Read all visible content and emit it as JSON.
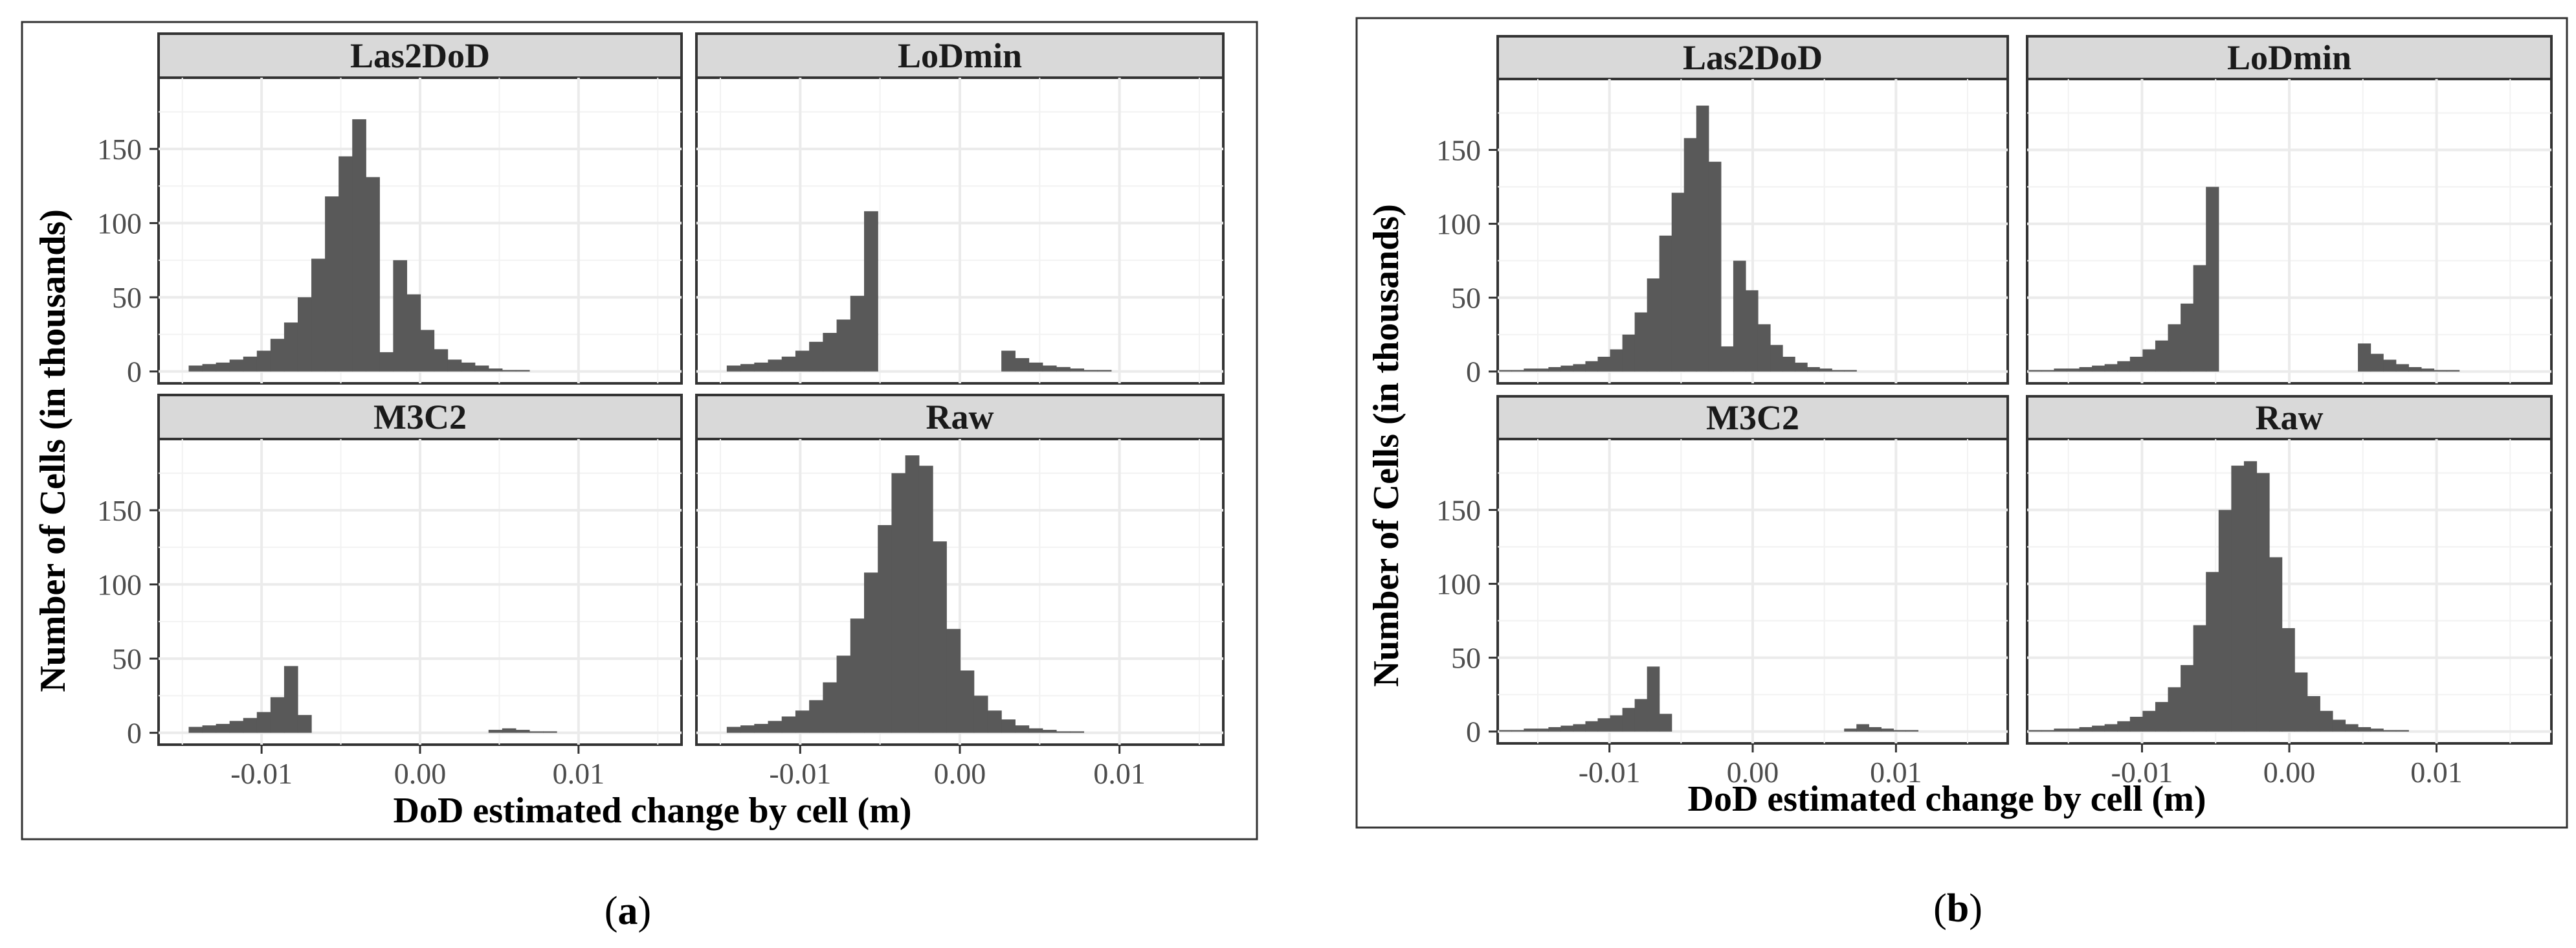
{
  "chart_data": [
    {
      "type": "bar",
      "subplot": "(a)",
      "caption_letter": "a",
      "ylabel": "Number of Cells (in thousands)",
      "xlabel": "DoD estimated change by cell (m)",
      "xlim": [
        -0.0165,
        0.0165
      ],
      "ylim": [
        -8,
        198
      ],
      "x_ticks": [
        -0.01,
        0.0,
        0.01
      ],
      "x_tick_labels": [
        "-0.01",
        "0.00",
        "0.01"
      ],
      "y_ticks": [
        0,
        50,
        100,
        150
      ],
      "y_tick_labels": [
        "0",
        "50",
        "100",
        "150"
      ],
      "bin_width": 0.00086,
      "panels": [
        {
          "title": "Las2DoD",
          "bins_start": -0.0146,
          "values": [
            4,
            5,
            6,
            8,
            10,
            14,
            22,
            33,
            50,
            76,
            118,
            145,
            170,
            131,
            13,
            75,
            52,
            28,
            15,
            8,
            6,
            4,
            2,
            1,
            1,
            0,
            0,
            0,
            0,
            0
          ]
        },
        {
          "title": "LoDmin",
          "bins_start": -0.0146,
          "values": [
            4,
            5,
            6,
            8,
            10,
            14,
            20,
            26,
            35,
            51,
            108,
            0,
            0,
            0,
            0,
            0,
            0,
            0,
            0,
            0,
            14,
            9,
            6,
            4,
            3,
            2,
            1,
            1,
            0,
            0
          ]
        },
        {
          "title": "M3C2",
          "bins_start": -0.0146,
          "values": [
            4,
            5,
            6,
            8,
            10,
            14,
            24,
            45,
            12,
            0,
            0,
            0,
            0,
            0,
            0,
            0,
            0,
            0,
            0,
            0,
            0,
            0,
            2,
            3,
            2,
            1,
            1,
            0,
            0,
            0
          ]
        },
        {
          "title": "Raw",
          "bins_start": -0.0146,
          "values": [
            4,
            5,
            6,
            8,
            11,
            15,
            22,
            34,
            52,
            77,
            108,
            140,
            175,
            187,
            180,
            129,
            70,
            42,
            25,
            15,
            9,
            5,
            3,
            2,
            1,
            1,
            0,
            0,
            0,
            0
          ]
        }
      ]
    },
    {
      "type": "bar",
      "subplot": "(b)",
      "caption_letter": "b",
      "ylabel": "Number of Cells (in thousands)",
      "xlabel": "DoD estimated change by cell (m)",
      "xlim": [
        -0.0178,
        0.0178
      ],
      "ylim": [
        -8,
        198
      ],
      "x_ticks": [
        -0.01,
        0.0,
        0.01
      ],
      "x_tick_labels": [
        "-0.01",
        "0.00",
        "0.01"
      ],
      "y_ticks": [
        0,
        50,
        100,
        150
      ],
      "y_tick_labels": [
        "0",
        "50",
        "100",
        "150"
      ],
      "bin_width": 0.00086,
      "panels": [
        {
          "title": "Las2DoD",
          "bins_start": -0.0177,
          "values": [
            1,
            1,
            2,
            2,
            3,
            4,
            5,
            7,
            10,
            15,
            25,
            40,
            63,
            92,
            121,
            158,
            180,
            142,
            17,
            75,
            55,
            32,
            18,
            10,
            6,
            3,
            2,
            1,
            1,
            0,
            0,
            0,
            0,
            0,
            0,
            0,
            0,
            0,
            0,
            0,
            0
          ]
        },
        {
          "title": "LoDmin",
          "bins_start": -0.0177,
          "values": [
            1,
            1,
            2,
            2,
            3,
            4,
            5,
            7,
            10,
            15,
            21,
            32,
            46,
            72,
            125,
            0,
            0,
            0,
            0,
            0,
            0,
            0,
            0,
            0,
            0,
            0,
            19,
            12,
            8,
            5,
            3,
            2,
            1,
            1,
            0,
            0,
            0,
            0,
            0,
            0,
            0
          ]
        },
        {
          "title": "M3C2",
          "bins_start": -0.0177,
          "values": [
            1,
            1,
            2,
            2,
            3,
            4,
            5,
            7,
            9,
            11,
            16,
            22,
            44,
            12,
            0,
            0,
            0,
            0,
            0,
            0,
            0,
            0,
            0,
            0,
            0,
            0,
            0,
            0,
            2,
            5,
            3,
            2,
            1,
            1,
            0,
            0,
            0,
            0,
            0,
            0,
            0
          ]
        },
        {
          "title": "Raw",
          "bins_start": -0.0177,
          "values": [
            1,
            1,
            2,
            2,
            3,
            4,
            5,
            7,
            10,
            14,
            20,
            30,
            45,
            72,
            108,
            150,
            180,
            183,
            175,
            118,
            70,
            40,
            24,
            14,
            8,
            5,
            3,
            2,
            1,
            1,
            0,
            0,
            0,
            0,
            0,
            0,
            0,
            0,
            0,
            0,
            0
          ]
        }
      ]
    }
  ]
}
